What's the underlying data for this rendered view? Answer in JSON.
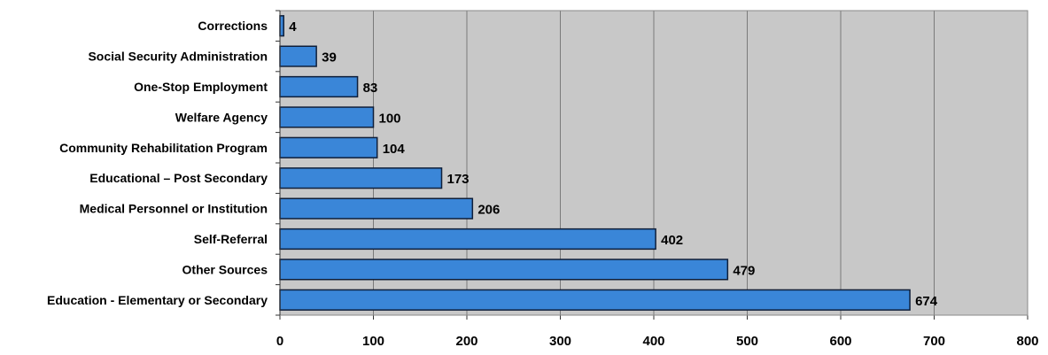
{
  "chart_data": {
    "type": "bar",
    "orientation": "horizontal",
    "title": "",
    "xlabel": "",
    "ylabel": "",
    "categories": [
      "Corrections",
      "Social Security Administration",
      "One-Stop Employment",
      "Welfare Agency",
      "Community Rehabilitation Program",
      "Educational – Post Secondary",
      "Medical Personnel or Institution",
      "Self-Referral",
      "Other Sources",
      "Education - Elementary or Secondary"
    ],
    "values": [
      4,
      39,
      83,
      100,
      104,
      173,
      206,
      402,
      479,
      674
    ],
    "data_labels": [
      "4",
      "39",
      "83",
      "100",
      "104",
      "173",
      "206",
      "402",
      "479",
      "674"
    ],
    "xlim": [
      0,
      800
    ],
    "x_ticks": [
      0,
      100,
      200,
      300,
      400,
      500,
      600,
      700,
      800
    ],
    "x_tick_labels": [
      "0",
      "100",
      "200",
      "300",
      "400",
      "500",
      "600",
      "700",
      "800"
    ],
    "grid": "vertical",
    "legend": "none",
    "colors": {
      "bar_fill": "#3a86d8",
      "bar_edge": "#0f1f3a",
      "plot_background": "#c8c8c8",
      "gridline": "#7a7a7a",
      "axis": "#333333"
    }
  }
}
